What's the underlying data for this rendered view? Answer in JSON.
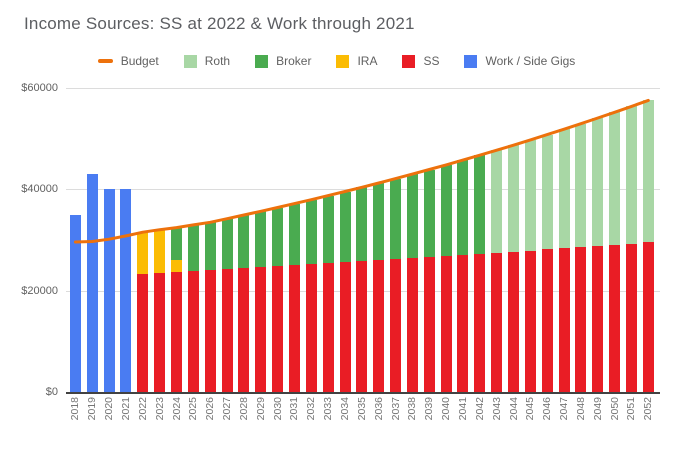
{
  "title": "Income Sources: SS at 2022 & Work through 2021",
  "colors": {
    "background": "#FFFFFF",
    "budget": "#ED710C",
    "roth": "#A8D7A5",
    "broker": "#4AAB50",
    "ira": "#FBBC04",
    "ss": "#E91D25",
    "work": "#4A7CF2",
    "title_text": "#5C5E62",
    "axis_text": "#757575",
    "gridline": "#DCDCDC",
    "baseline": "#424242"
  },
  "legend": [
    {
      "label": "Budget",
      "color": "#ED710C",
      "shape": "dash"
    },
    {
      "label": "Roth",
      "color": "#A8D7A5",
      "shape": "square"
    },
    {
      "label": "Broker",
      "color": "#4AAB50",
      "shape": "square"
    },
    {
      "label": "IRA",
      "color": "#FBBC04",
      "shape": "square"
    },
    {
      "label": "SS",
      "color": "#E91D25",
      "shape": "square"
    },
    {
      "label": "Work / Side Gigs",
      "color": "#4A7CF2",
      "shape": "square"
    }
  ],
  "y_axis": {
    "ticks": [
      "$60000",
      "$40000",
      "$20000",
      "$0"
    ],
    "max": 60000
  },
  "chart_data": {
    "type": "bar",
    "stacked": true,
    "title": "Income Sources: SS at 2022 & Work through 2021",
    "xlabel": "",
    "ylabel": "",
    "ylim": [
      0,
      60000
    ],
    "grid": true,
    "legend_position": "top",
    "x_labels_rotated_90": true,
    "categories": [
      2018,
      2019,
      2020,
      2021,
      2022,
      2023,
      2024,
      2025,
      2026,
      2027,
      2028,
      2029,
      2030,
      2031,
      2032,
      2033,
      2034,
      2035,
      2036,
      2037,
      2038,
      2039,
      2040,
      2041,
      2042,
      2043,
      2044,
      2045,
      2046,
      2047,
      2048,
      2049,
      2050,
      2051,
      2052
    ],
    "stack_order": [
      "Work / Side Gigs",
      "SS",
      "IRA",
      "Broker",
      "Roth"
    ],
    "series": [
      {
        "name": "Work / Side Gigs",
        "key": "work",
        "type": "bar",
        "color": "#4A7CF2",
        "values": [
          35000,
          43000,
          40000,
          40000,
          0,
          0,
          0,
          0,
          0,
          0,
          0,
          0,
          0,
          0,
          0,
          0,
          0,
          0,
          0,
          0,
          0,
          0,
          0,
          0,
          0,
          0,
          0,
          0,
          0,
          0,
          0,
          0,
          0,
          0,
          0
        ]
      },
      {
        "name": "SS",
        "key": "ss",
        "type": "bar",
        "color": "#E91D25",
        "values": [
          0,
          0,
          0,
          0,
          23250,
          23450,
          23600,
          23800,
          24000,
          24200,
          24400,
          24600,
          24800,
          25000,
          25200,
          25400,
          25600,
          25800,
          26000,
          26200,
          26400,
          26600,
          26850,
          27050,
          27270,
          27500,
          27700,
          27930,
          28150,
          28380,
          28600,
          28830,
          29060,
          29300,
          29530
        ]
      },
      {
        "name": "IRA",
        "key": "ira",
        "type": "bar",
        "color": "#FBBC04",
        "values": [
          0,
          0,
          0,
          0,
          8280,
          8580,
          2450,
          0,
          0,
          0,
          0,
          0,
          0,
          0,
          0,
          0,
          0,
          0,
          0,
          0,
          0,
          0,
          0,
          0,
          0,
          0,
          0,
          0,
          0,
          0,
          0,
          0,
          0,
          0,
          0
        ]
      },
      {
        "name": "Broker",
        "key": "broker",
        "type": "bar",
        "color": "#4AAB50",
        "values": [
          0,
          0,
          0,
          0,
          0,
          0,
          6400,
          9180,
          9500,
          10000,
          10525,
          11060,
          11610,
          12175,
          12760,
          13355,
          13970,
          14600,
          15250,
          15920,
          16605,
          17310,
          17980,
          18725,
          19470,
          0,
          0,
          0,
          0,
          0,
          0,
          0,
          0,
          0,
          0
        ]
      },
      {
        "name": "Roth",
        "key": "roth",
        "type": "bar",
        "color": "#A8D7A5",
        "values": [
          0,
          0,
          0,
          0,
          0,
          0,
          0,
          0,
          0,
          0,
          0,
          0,
          0,
          0,
          0,
          0,
          0,
          0,
          0,
          0,
          0,
          0,
          0,
          0,
          0,
          20220,
          21020,
          21820,
          22645,
          23480,
          24350,
          25240,
          26140,
          27065,
          28020
        ]
      },
      {
        "name": "Budget",
        "key": "budget",
        "type": "line",
        "color": "#ED710C",
        "values": [
          29600,
          29700,
          30150,
          30800,
          31530,
          32030,
          32450,
          32980,
          33500,
          34205,
          34925,
          35660,
          36410,
          37175,
          37960,
          38755,
          39570,
          40400,
          41250,
          42120,
          43005,
          43910,
          44830,
          45775,
          46740,
          47720,
          48720,
          49750,
          50795,
          51860,
          52950,
          54070,
          55200,
          56370,
          57550
        ]
      }
    ]
  }
}
